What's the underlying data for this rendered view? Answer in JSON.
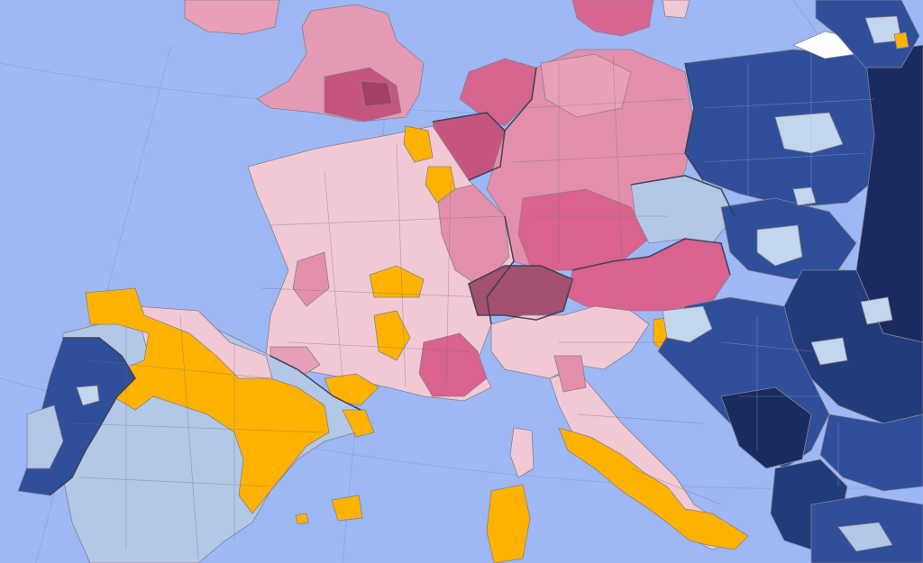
{
  "map": {
    "kind": "choropleth",
    "projection": "conic",
    "has_legend": false,
    "has_title": false
  },
  "colors": {
    "sea": "#9db8f5",
    "pink_light": "#f1c9d4",
    "pink_mid": "#e38fac",
    "pink_strong": "#d9628f",
    "pink_dark": "#b9507b",
    "switzerland": "#a35070",
    "orange": "#ffb300",
    "blue_pale": "#b3c8e6",
    "blue_light": "#c2d6ee",
    "blue_mid": "#2f4f9a",
    "blue_dark": "#223b7a",
    "blue_darkest": "#1a2c5f",
    "white": "#ffffff"
  }
}
